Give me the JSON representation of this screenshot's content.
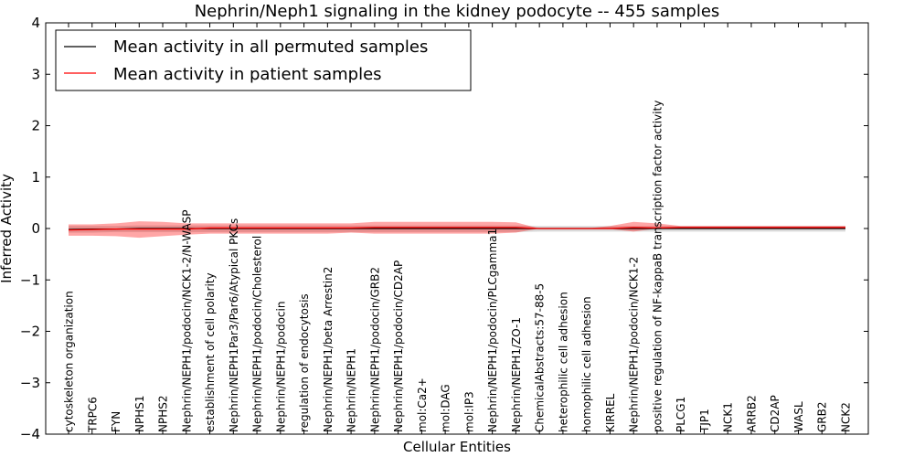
{
  "chart_data": {
    "type": "line",
    "title": "Nephrin/Neph1 signaling in the kidney podocyte -- 455 samples",
    "xlabel": "Cellular Entities",
    "ylabel": "Inferred Activity",
    "ylim": [
      -4,
      4
    ],
    "yticks": [
      -4,
      -3,
      -2,
      -1,
      0,
      1,
      2,
      3,
      4
    ],
    "ytick_labels": [
      "−4",
      "−3",
      "−2",
      "−1",
      "0",
      "1",
      "2",
      "3",
      "4"
    ],
    "legend_position": "upper-left",
    "categories": [
      "cytoskeleton organization",
      "TRPC6",
      "FYN",
      "NPHS1",
      "NPHS2",
      "Nephrin/NEPH1/podocin/NCK1-2/N-WASP",
      "establishment of cell polarity",
      "Nephrin/NEPH1Par3/Par6/Atypical PKCs",
      "Nephrin/NEPH1/podocin/Cholesterol",
      "Nephrin/NEPH1/podocin",
      "regulation of endocytosis",
      "Nephrin/NEPH1/beta Arrestin2",
      "Nephrin/NEPH1",
      "Nephrin/NEPH1/podocin/GRB2",
      "Nephrin/NEPH1/podocin/CD2AP",
      "mol:Ca2+",
      "mol:DAG",
      "mol:IP3",
      "Nephrin/NEPH1/podocin/PLCgamma1",
      "Nephrin/NEPH1/ZO-1",
      "ChemicalAbstracts:57-88-5",
      "heterophilic cell adhesion",
      "homophilic cell adhesion",
      "KIRREL",
      "Nephrin/NEPH1/podocin/NCK1-2",
      "positive regulation of NF-kappaB transcription factor activity",
      "PLCG1",
      "TJP1",
      "NCK1",
      "ARRB2",
      "CD2AP",
      "WASL",
      "GRB2",
      "NCK2"
    ],
    "series": [
      {
        "name": "Mean activity in all permuted samples",
        "color": "#000000",
        "values": [
          -0.02,
          -0.01,
          -0.01,
          0,
          0,
          0,
          0,
          0,
          0,
          0,
          0,
          0,
          0,
          0,
          0,
          0,
          0,
          0,
          0,
          0,
          0,
          0,
          0,
          0,
          0,
          0,
          0,
          0,
          0,
          0,
          0,
          0,
          0,
          0
        ],
        "band_lower": [
          -0.08,
          -0.08,
          -0.07,
          -0.07,
          -0.07,
          -0.07,
          -0.07,
          -0.07,
          -0.07,
          -0.07,
          -0.07,
          -0.07,
          -0.07,
          -0.07,
          -0.07,
          -0.07,
          -0.07,
          -0.07,
          -0.07,
          -0.07,
          -0.06,
          -0.06,
          -0.06,
          -0.06,
          -0.06,
          -0.06,
          -0.06,
          -0.06,
          -0.06,
          -0.06,
          -0.06,
          -0.06,
          -0.06,
          -0.06
        ],
        "band_upper": [
          0.05,
          0.05,
          0.05,
          0.06,
          0.06,
          0.06,
          0.06,
          0.06,
          0.06,
          0.06,
          0.06,
          0.06,
          0.06,
          0.06,
          0.06,
          0.06,
          0.06,
          0.06,
          0.06,
          0.06,
          0.05,
          0.05,
          0.05,
          0.05,
          0.05,
          0.05,
          0.05,
          0.05,
          0.05,
          0.05,
          0.05,
          0.05,
          0.05,
          0.05
        ],
        "band_color": "#cccccc"
      },
      {
        "name": "Mean activity in patient samples",
        "color": "#ff0000",
        "values": [
          -0.03,
          -0.02,
          -0.01,
          -0.01,
          -0.01,
          -0.01,
          0.01,
          0.01,
          0.01,
          0.01,
          0.01,
          0.01,
          0.01,
          0.02,
          0.02,
          0.02,
          0.02,
          0.02,
          0.02,
          0.02,
          0,
          0,
          0,
          0,
          0.02,
          0.01,
          0.02,
          0.02,
          0.02,
          0.02,
          0.02,
          0.02,
          0.02,
          0.02
        ],
        "band_lower": [
          -0.14,
          -0.14,
          -0.15,
          -0.18,
          -0.15,
          -0.12,
          -0.1,
          -0.1,
          -0.1,
          -0.1,
          -0.1,
          -0.1,
          -0.08,
          -0.1,
          -0.1,
          -0.1,
          -0.1,
          -0.1,
          -0.1,
          -0.08,
          0,
          0,
          0,
          -0.01,
          -0.06,
          0,
          0.01,
          0.01,
          0.01,
          0.01,
          0.01,
          0.01,
          0.01,
          0.01
        ],
        "band_upper": [
          0.08,
          0.08,
          0.1,
          0.14,
          0.13,
          0.1,
          0.1,
          0.1,
          0.1,
          0.1,
          0.1,
          0.1,
          0.1,
          0.13,
          0.13,
          0.13,
          0.13,
          0.13,
          0.13,
          0.12,
          0,
          0,
          0,
          0.05,
          0.13,
          0.1,
          0.05,
          0.05,
          0.05,
          0.05,
          0.05,
          0.05,
          0.05,
          0.05
        ],
        "band_color": "#ff0000"
      }
    ]
  }
}
